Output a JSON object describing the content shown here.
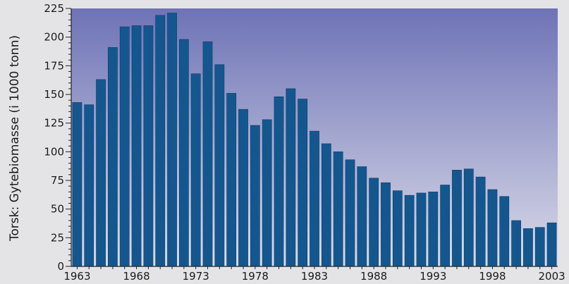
{
  "chart_data": {
    "type": "bar",
    "title": "",
    "xlabel": "",
    "ylabel": "Torsk: Gytebiomasse (i 1000 tonn)",
    "ylim": [
      0,
      225
    ],
    "y_ticks": [
      "0",
      "25",
      "50",
      "75",
      "100",
      "125",
      "150",
      "175",
      "200",
      "225"
    ],
    "x_tick_labels": [
      "1963",
      "1968",
      "1973",
      "1978",
      "1983",
      "1988",
      "1993",
      "1998",
      "2003"
    ],
    "categories": [
      "1963",
      "1964",
      "1965",
      "1966",
      "1967",
      "1968",
      "1969",
      "1970",
      "1971",
      "1972",
      "1973",
      "1974",
      "1975",
      "1976",
      "1977",
      "1978",
      "1979",
      "1980",
      "1981",
      "1982",
      "1983",
      "1984",
      "1985",
      "1986",
      "1987",
      "1988",
      "1989",
      "1990",
      "1991",
      "1992",
      "1993",
      "1994",
      "1995",
      "1996",
      "1997",
      "1998",
      "1999",
      "2000",
      "2001",
      "2002",
      "2003"
    ],
    "values": [
      143,
      141,
      163,
      191,
      209,
      210,
      210,
      219,
      221,
      198,
      168,
      196,
      176,
      151,
      137,
      123,
      128,
      148,
      155,
      146,
      118,
      107,
      100,
      93,
      87,
      77,
      73,
      66,
      62,
      64,
      65,
      71,
      84,
      85,
      78,
      67,
      61,
      40,
      33,
      34,
      38
    ],
    "grid": false,
    "colors": {
      "bar": "#14578f",
      "bar_edge": "#0a3d6b",
      "plot_bg_top": "#6e73b6",
      "plot_bg_bottom": "#dadbe8",
      "axis": "#222222",
      "page_bg": "#e4e4e6"
    }
  }
}
